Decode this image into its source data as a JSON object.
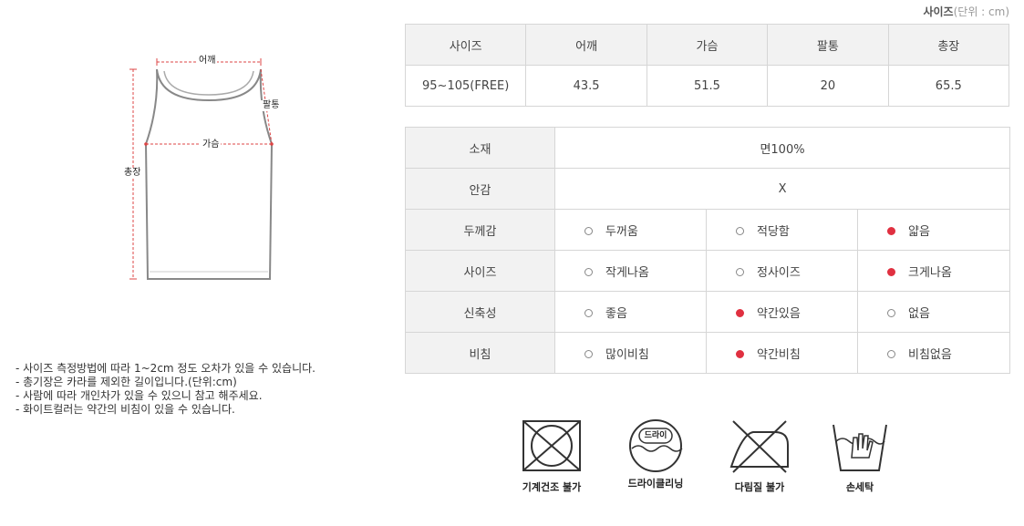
{
  "unit": {
    "label": "사이즈",
    "note": "(단위 : cm)"
  },
  "diagram": {
    "shoulder": "어깨",
    "sleeve": "팔통",
    "chest": "가슴",
    "length": "총장"
  },
  "notes": [
    "- 사이즈 측정방법에 따라 1~2cm 정도 오차가 있을 수 있습니다.",
    "- 총기장은 카라를 제외한 길이입니다.(단위:cm)",
    "- 사람에 따라 개인차가 있을 수 있으니 참고 해주세요.",
    "- 화이트컬러는 약간의 비침이 있을 수 있습니다."
  ],
  "size_table": {
    "headers": [
      "사이즈",
      "어깨",
      "가슴",
      "팔통",
      "총장"
    ],
    "row": [
      "95~105(FREE)",
      "43.5",
      "51.5",
      "20",
      "65.5"
    ]
  },
  "spec": {
    "material": {
      "label": "소재",
      "value": "면100%"
    },
    "lining": {
      "label": "안감",
      "value": "X"
    },
    "rows": [
      {
        "label": "두께감",
        "options": [
          "두꺼움",
          "적당함",
          "얇음"
        ],
        "selected": 2
      },
      {
        "label": "사이즈",
        "options": [
          "작게나옴",
          "정사이즈",
          "크게나옴"
        ],
        "selected": 2
      },
      {
        "label": "신축성",
        "options": [
          "좋음",
          "약간있음",
          "없음"
        ],
        "selected": 1
      },
      {
        "label": "비침",
        "options": [
          "많이비침",
          "약간비침",
          "비침없음"
        ],
        "selected": 1
      }
    ],
    "selected_color": "#e03040"
  },
  "care": {
    "tumble": {
      "caption": "기계건조 불가",
      "icon": "no-tumble-dry-icon"
    },
    "dry": {
      "caption": "드라이클리닝",
      "badge": "드라이",
      "icon": "dry-clean-icon"
    },
    "iron": {
      "caption": "다림질 불가",
      "icon": "no-iron-icon"
    },
    "hand": {
      "caption": "손세탁",
      "icon": "hand-wash-icon"
    }
  }
}
